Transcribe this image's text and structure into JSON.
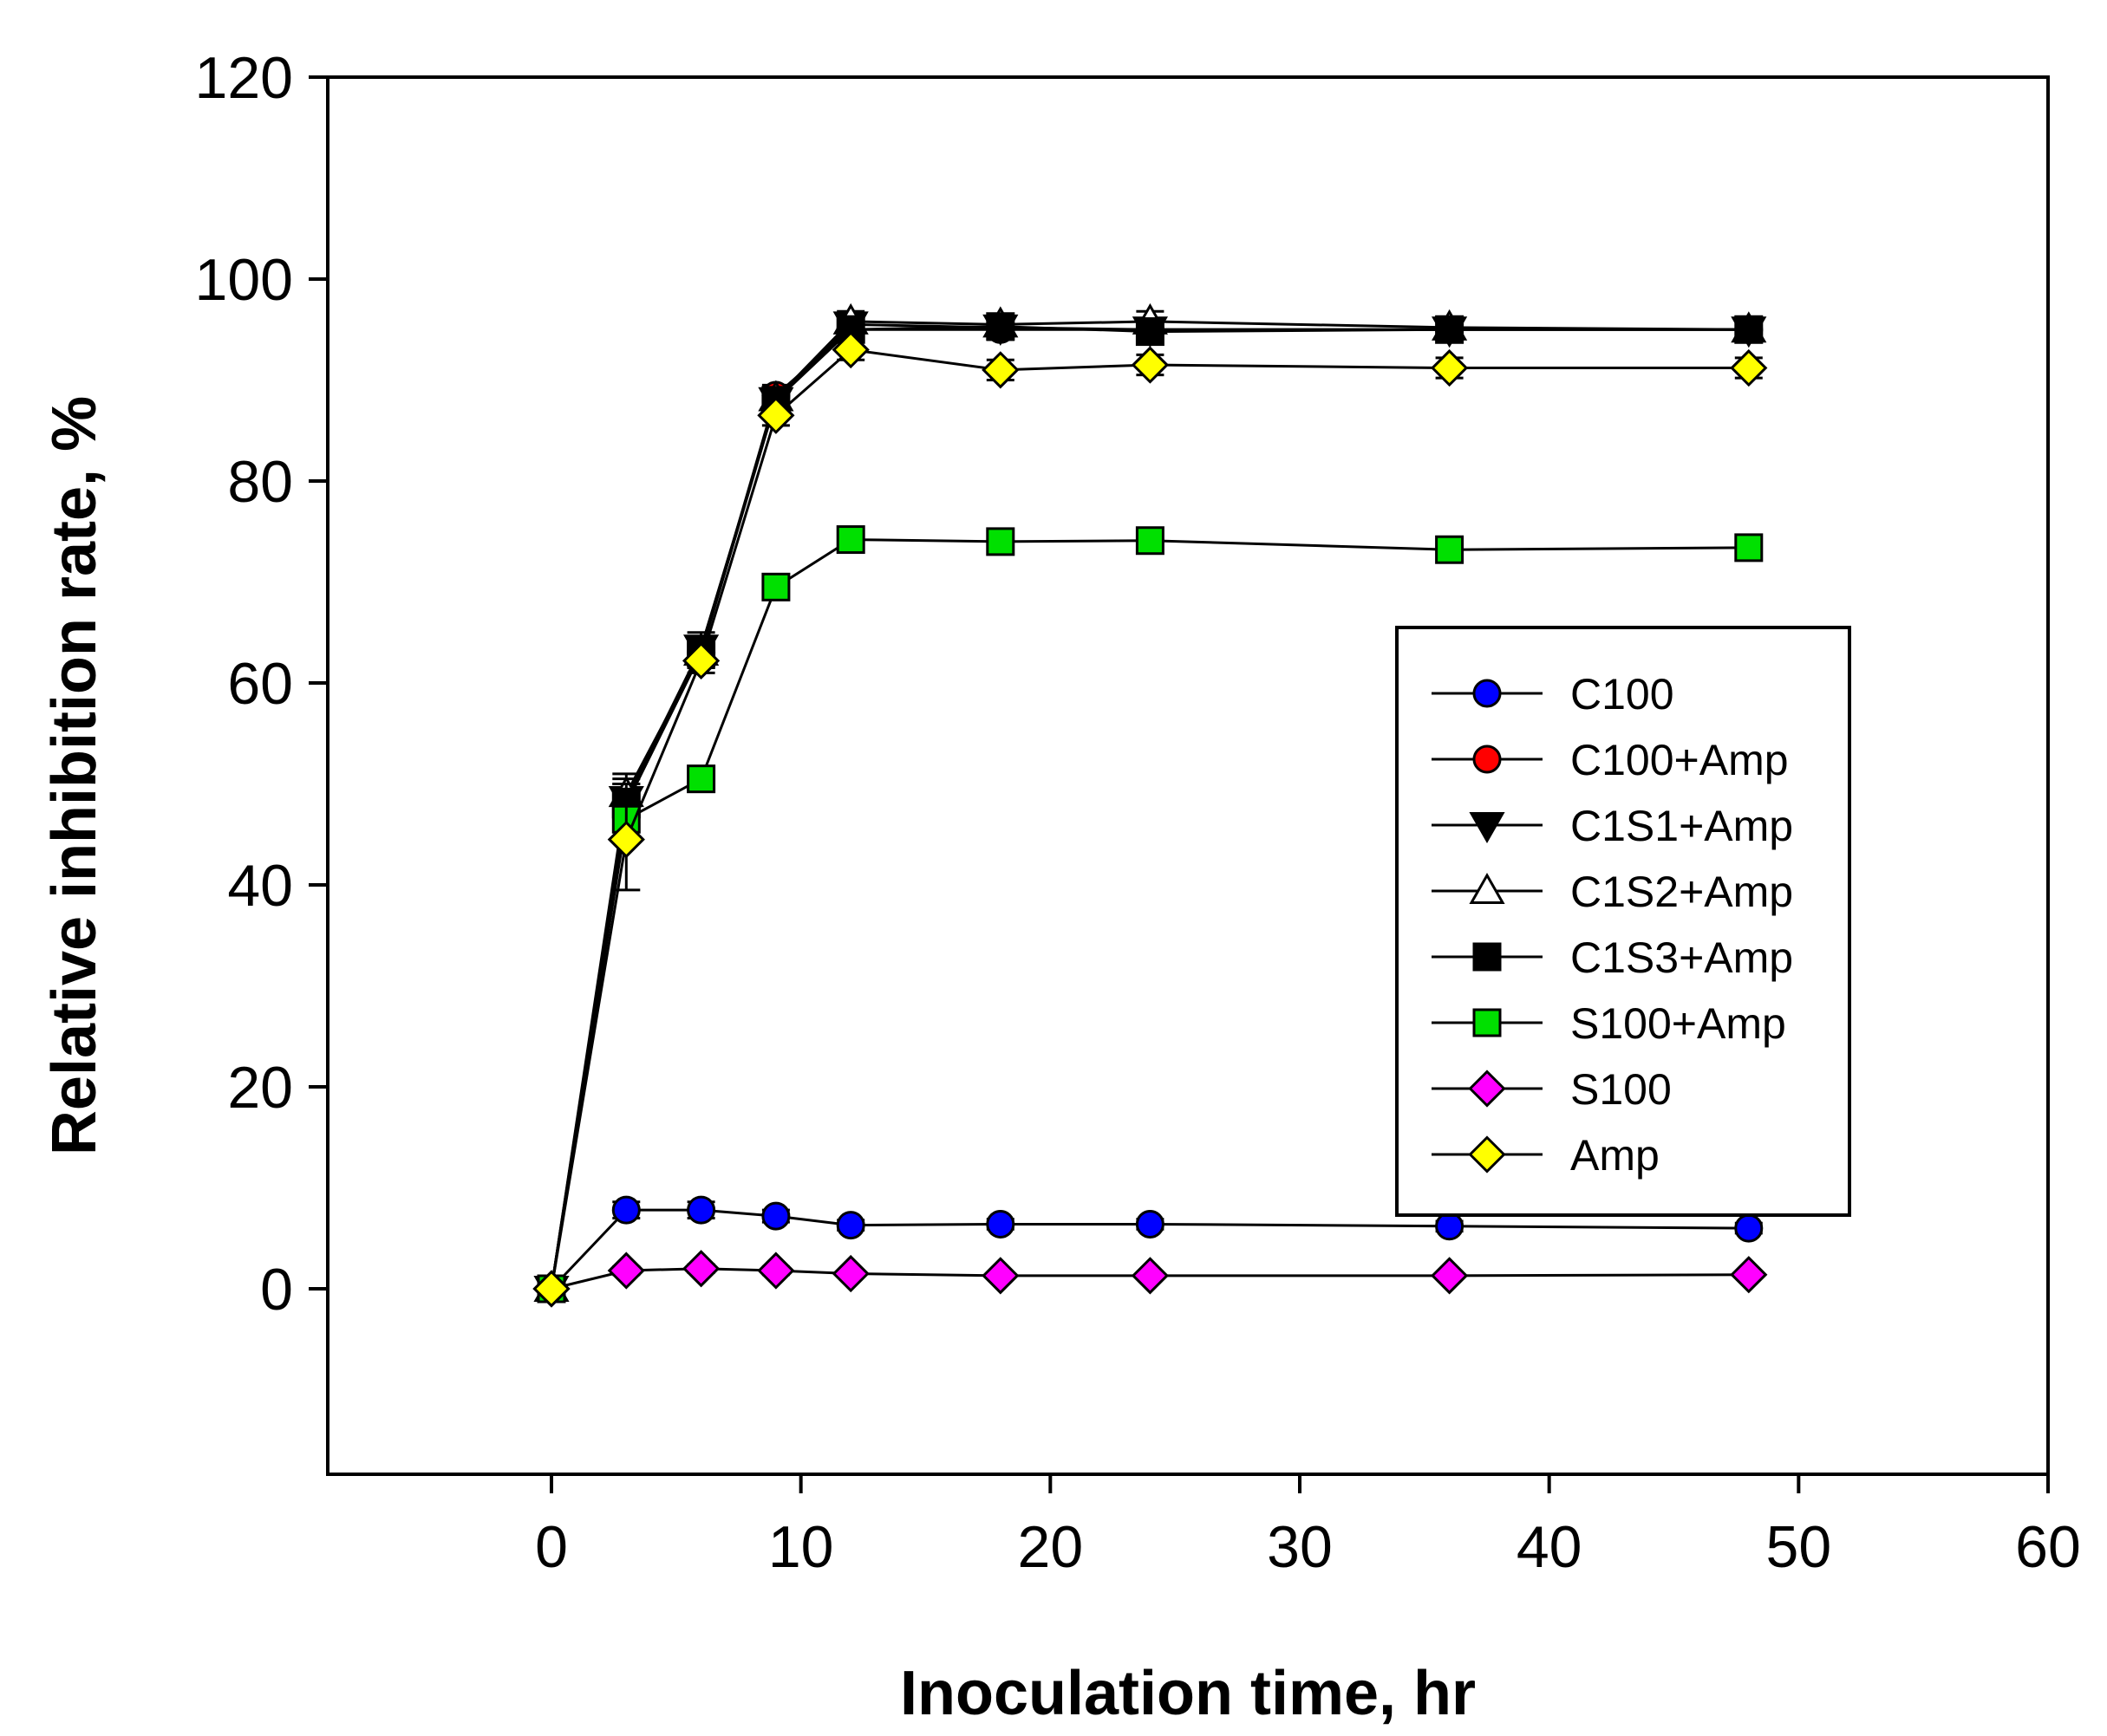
{
  "chart_data": {
    "type": "line",
    "title": "",
    "xlabel": "Inoculation time, hr",
    "ylabel": "Relative inhibition rate, %",
    "xlim": [
      -9,
      60
    ],
    "ylim": [
      -18,
      120
    ],
    "xticks": [
      0,
      10,
      20,
      30,
      40,
      50,
      60
    ],
    "yticks": [
      0,
      20,
      40,
      60,
      80,
      100,
      120
    ],
    "grid": false,
    "legend_position": "right-middle",
    "x": [
      0,
      3,
      6,
      9,
      12,
      18,
      24,
      36,
      48
    ],
    "series": [
      {
        "name": "C100",
        "marker": "circle",
        "color": "#0000ff",
        "values": [
          0,
          7.8,
          7.8,
          7.2,
          6.3,
          6.4,
          6.4,
          6.2,
          6.0
        ],
        "errors": [
          0,
          0.8,
          0.8,
          0.6,
          0.5,
          0.5,
          0.5,
          0.5,
          0.5
        ]
      },
      {
        "name": "C100+Amp",
        "marker": "circle",
        "color": "#ff0000",
        "values": [
          0,
          48.0,
          63.0,
          88.5,
          95.0,
          95.0,
          95.0,
          95.0,
          95.0
        ],
        "errors": [
          0,
          2.0,
          1.5,
          1.0,
          1.0,
          1.0,
          1.0,
          1.0,
          1.0
        ]
      },
      {
        "name": "C1S1+Amp",
        "marker": "triangle-down",
        "color": "#000000",
        "values": [
          0,
          48.5,
          63.5,
          88.0,
          95.5,
          95.2,
          95.0,
          95.0,
          95.0
        ],
        "errors": [
          0,
          2.0,
          1.5,
          1.0,
          1.0,
          1.0,
          1.0,
          1.0,
          1.0
        ]
      },
      {
        "name": "C1S2+Amp",
        "marker": "triangle-up",
        "color": "#ffffff",
        "values": [
          0,
          49.0,
          63.0,
          88.2,
          95.8,
          95.5,
          95.8,
          95.2,
          95.0
        ],
        "errors": [
          0,
          2.0,
          1.5,
          1.0,
          1.0,
          1.0,
          1.0,
          1.0,
          1.0
        ]
      },
      {
        "name": "C1S3+Amp",
        "marker": "square",
        "color": "#000000",
        "values": [
          0,
          48.0,
          63.0,
          88.0,
          95.0,
          95.3,
          94.8,
          95.0,
          95.0
        ],
        "errors": [
          0,
          2.0,
          1.5,
          1.0,
          1.0,
          1.0,
          1.0,
          1.0,
          1.0
        ]
      },
      {
        "name": "S100+Amp",
        "marker": "square",
        "color": "#00e000",
        "values": [
          0,
          46.5,
          50.5,
          69.5,
          74.2,
          74.0,
          74.1,
          73.2,
          73.4
        ],
        "errors": [
          0,
          2.0,
          1.0,
          1.0,
          1.0,
          0.8,
          0.8,
          0.8,
          0.8
        ]
      },
      {
        "name": "S100",
        "marker": "diamond",
        "color": "#ff00ff",
        "values": [
          0,
          1.8,
          2.0,
          1.8,
          1.5,
          1.3,
          1.3,
          1.3,
          1.4
        ],
        "errors": [
          0,
          0.4,
          0.4,
          0.4,
          0.3,
          0.3,
          0.3,
          0.3,
          0.3
        ]
      },
      {
        "name": "Amp",
        "marker": "diamond",
        "color": "#ffff00",
        "values": [
          0,
          44.5,
          62.2,
          86.5,
          93.0,
          91.0,
          91.5,
          91.2,
          91.2
        ],
        "errors": [
          0,
          5.0,
          1.2,
          1.0,
          1.0,
          1.0,
          1.0,
          1.0,
          1.0
        ]
      }
    ]
  }
}
